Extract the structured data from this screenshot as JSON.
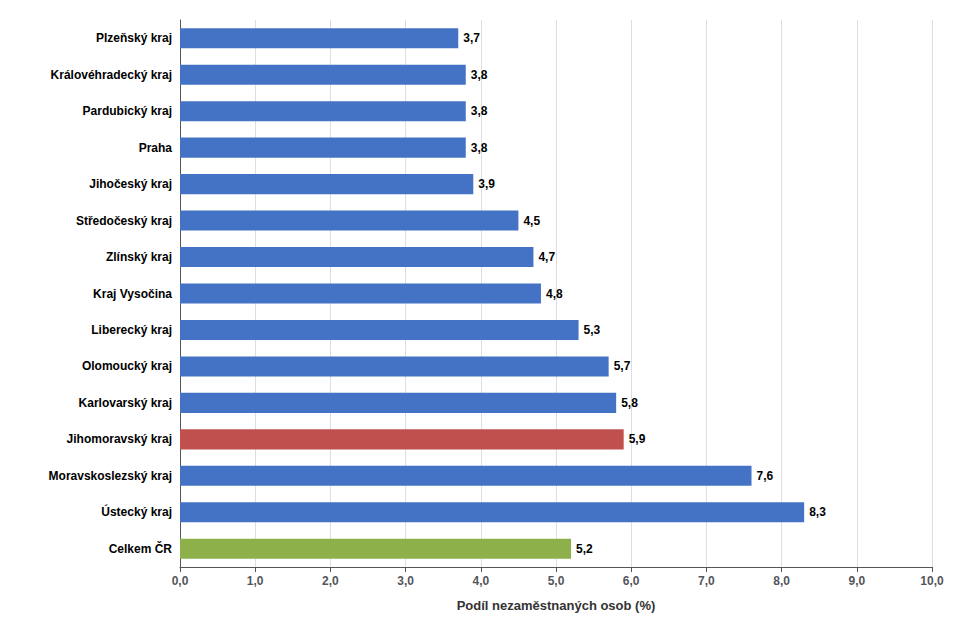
{
  "chart_data": {
    "type": "bar",
    "orientation": "horizontal",
    "categories": [
      "Celkem ČR",
      "Ústecký kraj",
      "Moravskoslezský kraj",
      "Jihomoravský kraj",
      "Karlovarský kraj",
      "Olomoucký kraj",
      "Liberecký kraj",
      "Kraj Vysočina",
      "Zlínský kraj",
      "Středočeský kraj",
      "Jihočeský kraj",
      "Praha",
      "Pardubický kraj",
      "Královéhradecký kraj",
      "Plzeňský kraj"
    ],
    "values": [
      5.2,
      8.3,
      7.6,
      5.9,
      5.8,
      5.7,
      5.3,
      4.8,
      4.7,
      4.5,
      3.9,
      3.8,
      3.8,
      3.8,
      3.7
    ],
    "value_labels": [
      "5,2",
      "8,3",
      "7,6",
      "5,9",
      "5,8",
      "5,7",
      "5,3",
      "4,8",
      "4,7",
      "4,5",
      "3,9",
      "3,8",
      "3,8",
      "3,8",
      "3,7"
    ],
    "data_labels": true,
    "colors": [
      "#8db04b",
      "#4472c4",
      "#4472c4",
      "#c0504d",
      "#4472c4",
      "#4472c4",
      "#4472c4",
      "#4472c4",
      "#4472c4",
      "#4472c4",
      "#4472c4",
      "#4472c4",
      "#4472c4",
      "#4472c4",
      "#4472c4"
    ],
    "xlabel": "Podíl nezaměstnaných osob (%)",
    "xlim": [
      0,
      10.0
    ],
    "xticks": [
      {
        "value": 0.0,
        "label": "0,0"
      },
      {
        "value": 1.0,
        "label": "1,0"
      },
      {
        "value": 2.0,
        "label": "2,0"
      },
      {
        "value": 3.0,
        "label": "3,0"
      },
      {
        "value": 4.0,
        "label": "4,0"
      },
      {
        "value": 5.0,
        "label": "5,0"
      },
      {
        "value": 6.0,
        "label": "6,0"
      },
      {
        "value": 7.0,
        "label": "7,0"
      },
      {
        "value": 8.0,
        "label": "8,0"
      },
      {
        "value": 9.0,
        "label": "9,0"
      },
      {
        "value": 10.0,
        "label": "10,0"
      }
    ],
    "grid": true
  }
}
